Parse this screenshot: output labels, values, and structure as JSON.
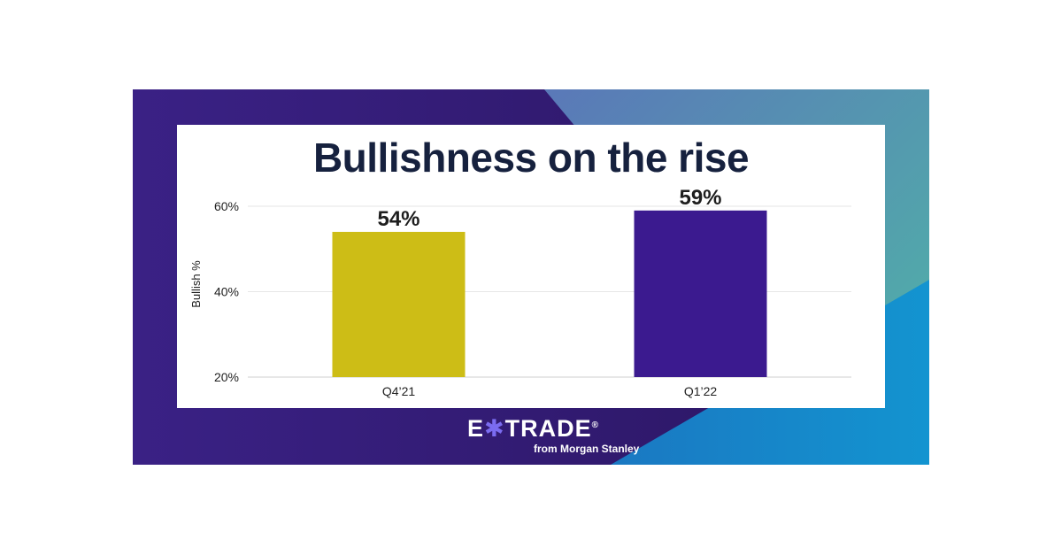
{
  "colors": {
    "banner_purple": "#2f1a6b",
    "banner_teal": "#4fb3a8",
    "banner_blue": "#1590cc",
    "bar_q4": "#cdbd16",
    "bar_q1": "#3b1a8f",
    "title": "#16213e"
  },
  "chart_data": {
    "type": "bar",
    "title": "Bullishness on the rise",
    "ylabel": "Bullish %",
    "xlabel": "",
    "categories": [
      "Q4’21",
      "Q1’22"
    ],
    "values": [
      54,
      59
    ],
    "value_labels": [
      "54%",
      "59%"
    ],
    "bar_colors": [
      "#cdbd16",
      "#3b1a8f"
    ],
    "ylim": [
      20,
      60
    ],
    "yticks": [
      20,
      40,
      60
    ],
    "ytick_labels": [
      "20%",
      "40%",
      "60%"
    ],
    "grid": true,
    "legend": "none"
  },
  "brand": {
    "name_left": "E",
    "name_mark": "✱",
    "name_right": "TRADE",
    "registered": "®",
    "tagline": "from Morgan Stanley"
  }
}
